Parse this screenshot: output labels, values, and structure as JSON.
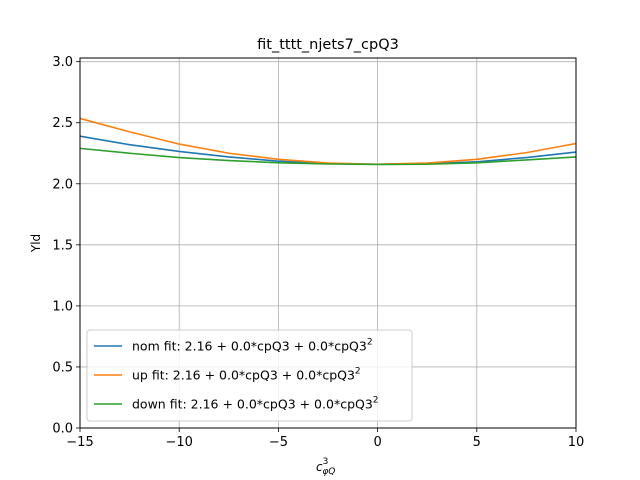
{
  "chart_data": {
    "type": "line",
    "title": "fit_tttt_njets7_cpQ3",
    "xlabel": "c",
    "xlabel_sup": "3",
    "xlabel_sub": "φQ",
    "ylabel": "Yld",
    "xlim": [
      -15,
      10
    ],
    "ylim": [
      0,
      3.03
    ],
    "xticks": [
      -15,
      -10,
      -5,
      0,
      5,
      10
    ],
    "xtick_labels": [
      "−15",
      "−10",
      "−5",
      "0",
      "5",
      "10"
    ],
    "yticks": [
      0.0,
      0.5,
      1.0,
      1.5,
      2.0,
      2.5,
      3.0
    ],
    "ytick_labels": [
      "0.0",
      "0.5",
      "1.0",
      "1.5",
      "2.0",
      "2.5",
      "3.0"
    ],
    "grid": true,
    "legend_position": "lower-left",
    "x": [
      -15,
      -12.5,
      -10,
      -7.5,
      -5,
      -2.5,
      0,
      2.5,
      5,
      7.5,
      10
    ],
    "series": [
      {
        "name": "nom fit: 2.16 + 0.0*cpQ3 + 0.0*cpQ3",
        "name_sup": "2",
        "color": "#1f77b4",
        "values": [
          2.39,
          2.32,
          2.265,
          2.22,
          2.185,
          2.165,
          2.16,
          2.165,
          2.18,
          2.215,
          2.26
        ]
      },
      {
        "name": "up fit: 2.16 + 0.0*cpQ3 + 0.0*cpQ3",
        "name_sup": "2",
        "color": "#ff7f0e",
        "values": [
          2.535,
          2.425,
          2.325,
          2.25,
          2.2,
          2.17,
          2.16,
          2.17,
          2.2,
          2.255,
          2.33
        ]
      },
      {
        "name": "down fit: 2.16 + 0.0*cpQ3 + 0.0*cpQ3",
        "name_sup": "2",
        "color": "#2ca02c",
        "values": [
          2.29,
          2.25,
          2.215,
          2.19,
          2.172,
          2.162,
          2.158,
          2.16,
          2.172,
          2.195,
          2.22
        ]
      }
    ]
  }
}
